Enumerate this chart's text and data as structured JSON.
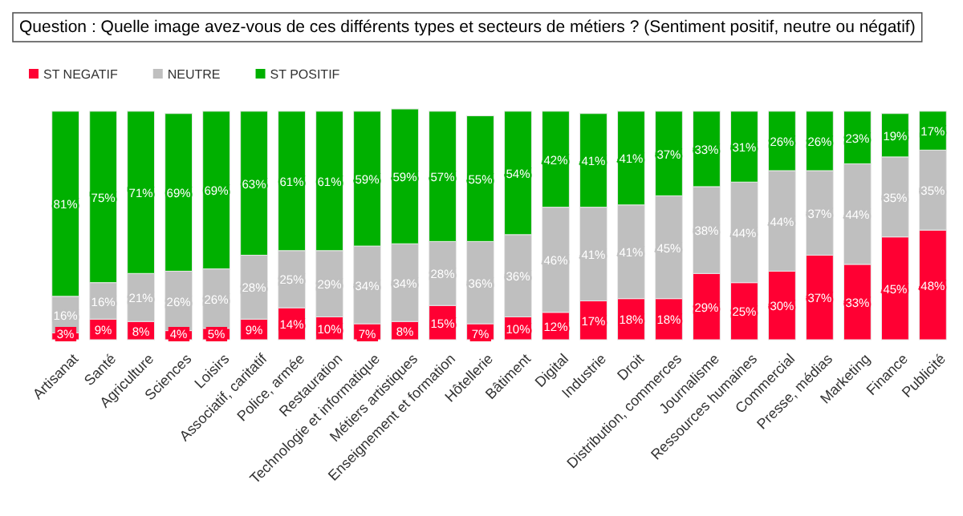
{
  "chart_data": {
    "type": "bar",
    "stacked": true,
    "title": "Question : Quelle image avez-vous de ces différents types et secteurs de métiers ? (Sentiment positif, neutre ou négatif)",
    "categories": [
      "Artisanat",
      "Santé",
      "Agriculture",
      "Sciences",
      "Loisirs",
      "Associatif, caritatif",
      "Police, armée",
      "Restauration",
      "Technologie et informatique",
      "Métiers artistiques",
      "Enseignement et formation",
      "Hôtellerie",
      "Bâtiment",
      "Digital",
      "Industrie",
      "Droit",
      "Distribution, commerces",
      "Journalisme",
      "Ressources humaines",
      "Commercial",
      "Presse, médias",
      "Marketing",
      "Finance",
      "Publicité"
    ],
    "series": [
      {
        "name": "ST NEGATIF",
        "color": "#ff0033",
        "values": [
          3,
          9,
          8,
          4,
          5,
          9,
          14,
          10,
          7,
          8,
          15,
          7,
          10,
          12,
          17,
          18,
          18,
          29,
          25,
          30,
          37,
          33,
          45,
          48
        ],
        "value_labels": [
          "3%",
          "9%",
          "8%",
          "4%",
          "5%",
          "9%",
          "14%",
          "10%",
          "7%",
          "8%",
          "15%",
          "7%",
          "10%",
          "12%",
          "17%",
          "18%",
          "18%",
          "29%",
          "25%",
          "30%",
          "37%",
          "33%",
          "45%",
          "48%"
        ]
      },
      {
        "name": "NEUTRE",
        "color": "#bfbfbf",
        "values": [
          16,
          16,
          21,
          26,
          26,
          28,
          25,
          29,
          34,
          34,
          28,
          36,
          36,
          46,
          41,
          41,
          45,
          38,
          44,
          44,
          37,
          44,
          35,
          35
        ],
        "value_labels": [
          "16%",
          "16%",
          "21%",
          "26%",
          "26%",
          "28%",
          "25%",
          "29%",
          "34%",
          "34%",
          "28%",
          "36%",
          "36%",
          "46%",
          "41%",
          "41%",
          "45%",
          "38%",
          "44%",
          "44%",
          "37%",
          "44%",
          "35%",
          "35%"
        ]
      },
      {
        "name": "ST POSITIF",
        "color": "#00b000",
        "values": [
          81,
          75,
          71,
          69,
          69,
          63,
          61,
          61,
          59,
          59,
          57,
          55,
          54,
          42,
          41,
          41,
          37,
          33,
          31,
          26,
          26,
          23,
          19,
          17
        ],
        "value_labels": [
          "81%",
          "75%",
          "71%",
          "69%",
          "69%",
          "63%",
          "61%",
          "61%",
          "59%",
          "59%",
          "57%",
          "55%",
          "54%",
          "42%",
          "41%",
          "41%",
          "37%",
          "33%",
          "31%",
          "26%",
          "26%",
          "23%",
          "19%",
          "17%"
        ]
      }
    ],
    "ylim": [
      0,
      101
    ],
    "tick_labels": "x",
    "legend": "top left"
  }
}
